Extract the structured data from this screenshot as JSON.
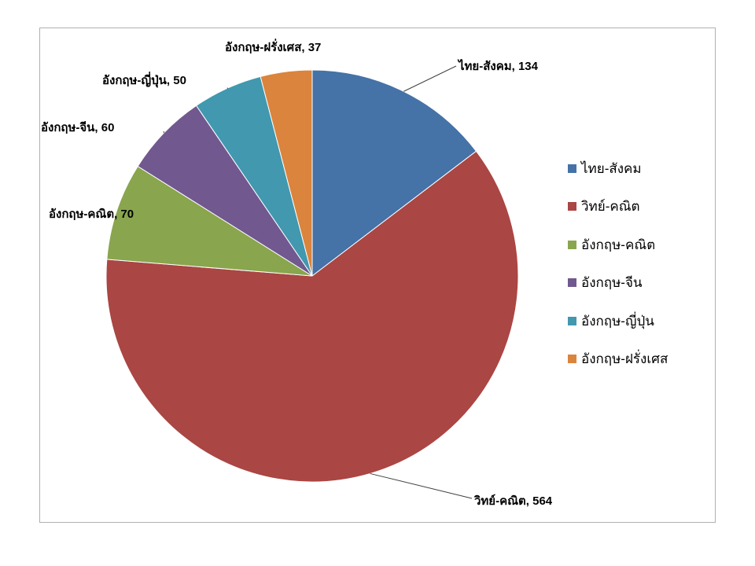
{
  "chart_data": {
    "type": "pie",
    "title": "",
    "start_angle": "12 o'clock",
    "direction": "clockwise",
    "categories": [
      "ไทย-สังคม",
      "วิทย์-คณิต",
      "อังกฤษ-คณิต",
      "อังกฤษ-จีน",
      "อังกฤษ-ญี่ปุ่น",
      "อังกฤษ-ฝรั่งเศส"
    ],
    "values": [
      134,
      564,
      70,
      60,
      50,
      37
    ],
    "data_labels": [
      "ไทย-สังคม, 134",
      "วิทย์-คณิต, 564",
      "อังกฤษ-คณิต, 70",
      "อังกฤษ-จีน, 60",
      "อังกฤษ-ญี่ปุ่น, 50",
      "อังกฤษ-ฝรั่งเศส, 37"
    ],
    "colors": [
      "#4572a7",
      "#aa4643",
      "#89a54e",
      "#71588f",
      "#4198af",
      "#db843d"
    ],
    "legend_placement": "right"
  }
}
